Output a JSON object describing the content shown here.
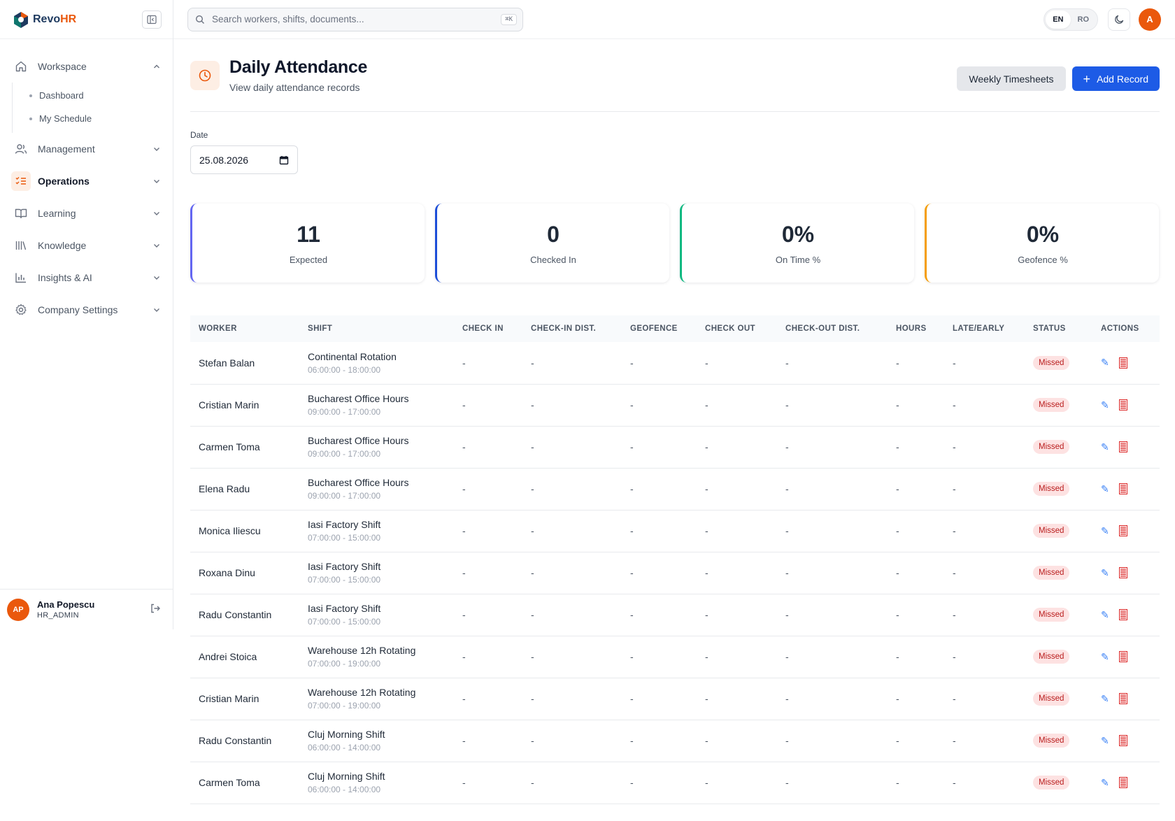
{
  "brand": {
    "name_prefix": "Revo",
    "name_suffix": "HR"
  },
  "sidebar": {
    "sections": [
      {
        "label": "Workspace",
        "icon": "home-icon",
        "expanded": true
      },
      {
        "label": "Management",
        "icon": "users-icon"
      },
      {
        "label": "Operations",
        "icon": "checklist-icon",
        "active": true
      },
      {
        "label": "Learning",
        "icon": "book-icon"
      },
      {
        "label": "Knowledge",
        "icon": "library-icon"
      },
      {
        "label": "Insights & AI",
        "icon": "bar-chart-icon"
      },
      {
        "label": "Company Settings",
        "icon": "gear-icon"
      }
    ],
    "workspace_items": [
      "Dashboard",
      "My Schedule"
    ],
    "user": {
      "initials": "AP",
      "name": "Ana Popescu",
      "role": "HR_ADMIN"
    }
  },
  "topbar": {
    "search_placeholder": "Search workers, shifts, documents...",
    "shortcut": "⌘K",
    "languages": [
      "EN",
      "RO"
    ],
    "selected_language": "EN",
    "avatar_initial": "A"
  },
  "page": {
    "title": "Daily Attendance",
    "subtitle": "View daily attendance records",
    "weekly_button": "Weekly Timesheets",
    "add_button": "Add Record",
    "date_label": "Date",
    "date_value": "25.08.2026"
  },
  "stats": [
    {
      "value": "11",
      "label": "Expected",
      "color": "#6366f1"
    },
    {
      "value": "0",
      "label": "Checked In",
      "color": "#1d4ed8"
    },
    {
      "value": "0%",
      "label": "On Time %",
      "color": "#10b981"
    },
    {
      "value": "0%",
      "label": "Geofence %",
      "color": "#f59e0b"
    }
  ],
  "table": {
    "columns": [
      "WORKER",
      "SHIFT",
      "CHECK IN",
      "CHECK-IN DIST.",
      "GEOFENCE",
      "CHECK OUT",
      "CHECK-OUT DIST.",
      "HOURS",
      "LATE/EARLY",
      "STATUS",
      "ACTIONS"
    ],
    "rows": [
      {
        "worker": "Stefan Balan",
        "shift": "Continental Rotation",
        "time": "06:00:00 - 18:00:00",
        "status": "Missed"
      },
      {
        "worker": "Cristian Marin",
        "shift": "Bucharest Office Hours",
        "time": "09:00:00 - 17:00:00",
        "status": "Missed"
      },
      {
        "worker": "Carmen Toma",
        "shift": "Bucharest Office Hours",
        "time": "09:00:00 - 17:00:00",
        "status": "Missed"
      },
      {
        "worker": "Elena Radu",
        "shift": "Bucharest Office Hours",
        "time": "09:00:00 - 17:00:00",
        "status": "Missed"
      },
      {
        "worker": "Monica Iliescu",
        "shift": "Iasi Factory Shift",
        "time": "07:00:00 - 15:00:00",
        "status": "Missed"
      },
      {
        "worker": "Roxana Dinu",
        "shift": "Iasi Factory Shift",
        "time": "07:00:00 - 15:00:00",
        "status": "Missed"
      },
      {
        "worker": "Radu Constantin",
        "shift": "Iasi Factory Shift",
        "time": "07:00:00 - 15:00:00",
        "status": "Missed"
      },
      {
        "worker": "Andrei Stoica",
        "shift": "Warehouse 12h Rotating",
        "time": "07:00:00 - 19:00:00",
        "status": "Missed"
      },
      {
        "worker": "Cristian Marin",
        "shift": "Warehouse 12h Rotating",
        "time": "07:00:00 - 19:00:00",
        "status": "Missed"
      },
      {
        "worker": "Radu Constantin",
        "shift": "Cluj Morning Shift",
        "time": "06:00:00 - 14:00:00",
        "status": "Missed"
      },
      {
        "worker": "Carmen Toma",
        "shift": "Cluj Morning Shift",
        "time": "06:00:00 - 14:00:00",
        "status": "Missed"
      }
    ],
    "empty_value": "-"
  }
}
